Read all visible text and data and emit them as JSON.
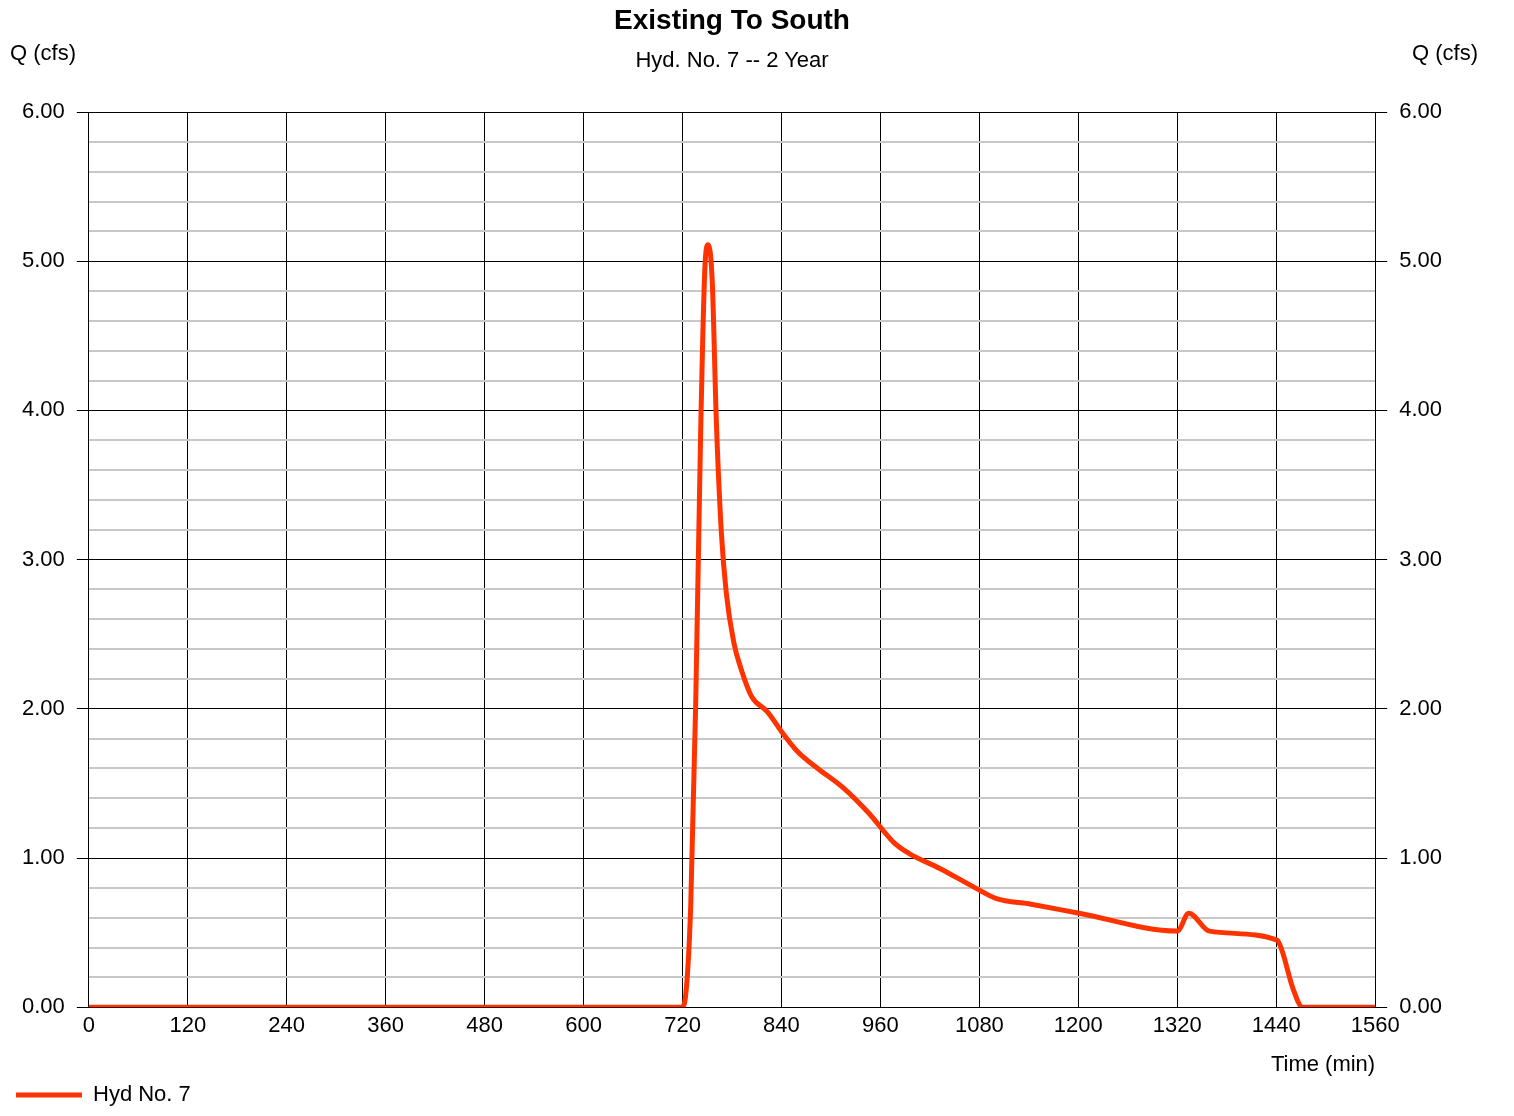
{
  "chart_data": {
    "type": "line",
    "title": "Existing To South",
    "subtitle": "Hyd. No. 7 -- 2 Year",
    "xlabel": "Time (min)",
    "ylabel": "Q (cfs)",
    "y2label": "Q (cfs)",
    "xlim": [
      0,
      1560
    ],
    "xticks": [
      0,
      120,
      240,
      360,
      480,
      600,
      720,
      840,
      960,
      1080,
      1200,
      1320,
      1440,
      1560
    ],
    "ylim": [
      0,
      6
    ],
    "yticks": [
      {
        "value": 0,
        "label": "0.00"
      },
      {
        "value": 0.2,
        "label": null
      },
      {
        "value": 0.4,
        "label": null
      },
      {
        "value": 0.6,
        "label": null
      },
      {
        "value": 0.8,
        "label": null
      },
      {
        "value": 1,
        "label": "1.00"
      },
      {
        "value": 1.2,
        "label": null
      },
      {
        "value": 1.4,
        "label": null
      },
      {
        "value": 1.6,
        "label": null
      },
      {
        "value": 1.8,
        "label": null
      },
      {
        "value": 2,
        "label": "2.00"
      },
      {
        "value": 2.2,
        "label": null
      },
      {
        "value": 2.4,
        "label": null
      },
      {
        "value": 2.6,
        "label": null
      },
      {
        "value": 2.8,
        "label": null
      },
      {
        "value": 3,
        "label": "3.00"
      },
      {
        "value": 3.2,
        "label": null
      },
      {
        "value": 3.4,
        "label": null
      },
      {
        "value": 3.6,
        "label": null
      },
      {
        "value": 3.8,
        "label": null
      },
      {
        "value": 4,
        "label": "4.00"
      },
      {
        "value": 4.2,
        "label": null
      },
      {
        "value": 4.4,
        "label": null
      },
      {
        "value": 4.6,
        "label": null
      },
      {
        "value": 4.8,
        "label": null
      },
      {
        "value": 5,
        "label": "5.00"
      },
      {
        "value": 5.2,
        "label": null
      },
      {
        "value": 5.4,
        "label": null
      },
      {
        "value": 5.6,
        "label": null
      },
      {
        "value": 5.8,
        "label": null
      },
      {
        "value": 6,
        "label": "6.00"
      }
    ],
    "y2lim": [
      0,
      6
    ],
    "y2ticks": [
      {
        "value": 0,
        "label": "0.00"
      },
      {
        "value": 1,
        "label": "1.00"
      },
      {
        "value": 2,
        "label": "2.00"
      },
      {
        "value": 3,
        "label": "3.00"
      },
      {
        "value": 4,
        "label": "4.00"
      },
      {
        "value": 5,
        "label": "5.00"
      },
      {
        "value": 6,
        "label": "6.00"
      }
    ],
    "grid": true,
    "legend": "bottom left",
    "line_style": "solid",
    "x": [
      0,
      719,
      724,
      730,
      736,
      742,
      747,
      751,
      756,
      761,
      767,
      773,
      782,
      792,
      804,
      823,
      841,
      860,
      884,
      915,
      946,
      977,
      995,
      1032,
      1075,
      1100,
      1143,
      1201,
      1320,
      1334,
      1359,
      1441,
      1447,
      1460,
      1472,
      1560
    ],
    "series": [
      {
        "name": "Hyd No. 7",
        "color": "#ff3300",
        "values": [
          0,
          0,
          0.09,
          0.69,
          2.04,
          3.86,
          4.94,
          5.11,
          4.87,
          3.93,
          3.19,
          2.78,
          2.45,
          2.25,
          2.08,
          1.98,
          1.84,
          1.71,
          1.6,
          1.47,
          1.3,
          1.1,
          1.03,
          0.93,
          0.8,
          0.73,
          0.69,
          0.63,
          0.51,
          0.63,
          0.51,
          0.45,
          0.38,
          0.13,
          0,
          0
        ]
      }
    ]
  }
}
